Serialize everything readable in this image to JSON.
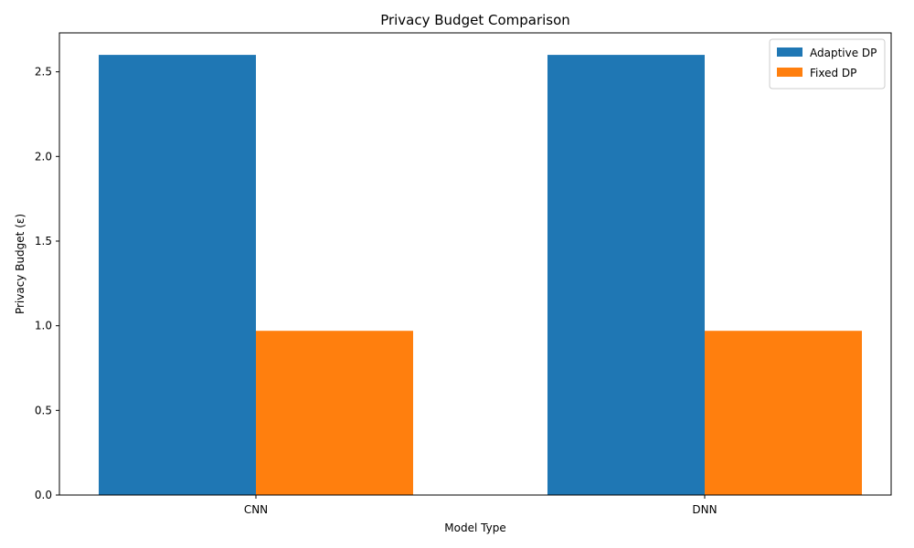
{
  "chart_data": {
    "type": "bar",
    "title": "Privacy Budget Comparison",
    "xlabel": "Model Type",
    "ylabel": "Privacy Budget (ε)",
    "categories": [
      "CNN",
      "DNN"
    ],
    "series": [
      {
        "name": "Adaptive DP",
        "values": [
          2.6,
          2.6
        ],
        "color": "#1f77b4"
      },
      {
        "name": "Fixed DP",
        "values": [
          0.97,
          0.97
        ],
        "color": "#ff7f0e"
      }
    ],
    "ylim": [
      0,
      2.73
    ],
    "yticks": [
      "0.0",
      "0.5",
      "1.0",
      "1.5",
      "2.0",
      "2.5"
    ],
    "grid": false,
    "legend_position": "top-right"
  }
}
